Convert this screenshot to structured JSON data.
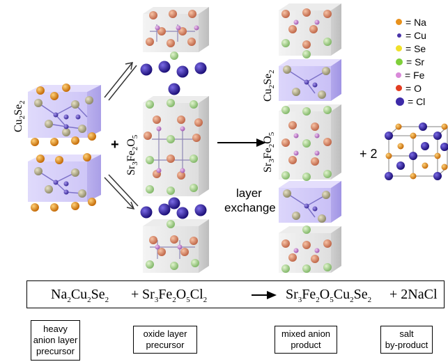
{
  "legend": [
    {
      "symbol": "Na",
      "label": "= Na",
      "color": "#e8911c",
      "size": 9
    },
    {
      "symbol": "Cu",
      "label": "= Cu",
      "color": "#4a34a8",
      "size": 6
    },
    {
      "symbol": "Se",
      "label": "= Se",
      "color": "#f0e02a",
      "size": 9
    },
    {
      "symbol": "Sr",
      "label": "= Sr",
      "color": "#7fcf3a",
      "size": 10
    },
    {
      "symbol": "Fe",
      "label": "= Fe",
      "color": "#d98ad9",
      "size": 8
    },
    {
      "symbol": "O",
      "label": "= O",
      "color": "#e23d22",
      "size": 9
    },
    {
      "symbol": "Cl",
      "label": "= Cl",
      "color": "#3d2aa8",
      "size": 12
    }
  ],
  "labels": {
    "cu2se2": {
      "main": "Cu",
      "sub1": "2",
      "mid": "Se",
      "sub2": "2"
    },
    "sr3fe2o5": {
      "main": "Sr",
      "sub1": "3",
      "mid": "Fe",
      "sub2": "2",
      "tail": "O",
      "sub3": "5"
    },
    "product_cu2se2": {
      "main": "Cu",
      "sub1": "2",
      "mid": "Se",
      "sub2": "2"
    },
    "product_sr3fe2o5": {
      "main": "Sr",
      "sub1": "3",
      "mid": "Fe",
      "sub2": "2",
      "tail": "O",
      "sub3": "5"
    },
    "plus": "+",
    "layer_exchange_1": "layer",
    "layer_exchange_2": "exchange",
    "plus_two": "+ 2"
  },
  "equation": {
    "reactant1": {
      "a": "Na",
      "a_sub": "2",
      "b": "Cu",
      "b_sub": "2",
      "c": "Se",
      "c_sub": "2"
    },
    "plus1": "+",
    "reactant2": {
      "a": "Sr",
      "a_sub": "3",
      "b": "Fe",
      "b_sub": "2",
      "c": "O",
      "c_sub": "5",
      "d": "Cl",
      "d_sub": "2"
    },
    "product1": {
      "a": "Sr",
      "a_sub": "3",
      "b": "Fe",
      "b_sub": "2",
      "c": "O",
      "c_sub": "5",
      "d": "Cu",
      "d_sub": "2",
      "e": "Se",
      "e_sub": "2"
    },
    "plus2": "+ 2NaCl"
  },
  "boxes": [
    {
      "id": "heavy",
      "lines": [
        "heavy",
        "anion layer",
        "precursor"
      ]
    },
    {
      "id": "oxide",
      "lines": [
        "oxide layer",
        "precursor"
      ]
    },
    {
      "id": "mixed",
      "lines": [
        "mixed anion",
        "product"
      ]
    },
    {
      "id": "salt",
      "lines": [
        "salt",
        "by-product"
      ]
    }
  ]
}
